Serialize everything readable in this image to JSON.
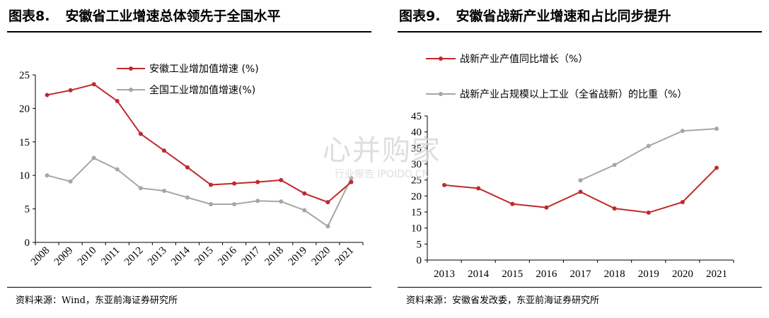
{
  "left": {
    "fig_num": "图表8.",
    "title": "安徽省工业增速总体领先于全国水平",
    "source": "资料来源：Wind，东亚前海证券研究所"
  },
  "right": {
    "fig_num": "图表9.",
    "title": "安徽省战新产业增速和占比同步提升",
    "source": "资料来源：安徽省发改委，东亚前海证券研究所"
  },
  "watermark": {
    "main": "心并购家",
    "sub": "行业报告 IPOIDO.CN"
  },
  "colors": {
    "red": "#c0282d",
    "gray": "#a6a6a6",
    "axis": "#000000"
  },
  "chart_data": [
    {
      "type": "line",
      "title": "",
      "categories": [
        "2008",
        "2009",
        "2010",
        "2011",
        "2012",
        "2013",
        "2014",
        "2015",
        "2016",
        "2017",
        "2018",
        "2019",
        "2020",
        "2021"
      ],
      "ylim": [
        0,
        25
      ],
      "yticks": [
        "0",
        "5",
        "10",
        "15",
        "20",
        "25"
      ],
      "grid": false,
      "legend_position": "top",
      "series": [
        {
          "name": "安徽工业增加值增速 (%)",
          "color": "#c0282d",
          "values": [
            22.0,
            22.7,
            23.6,
            21.1,
            16.2,
            13.7,
            11.2,
            8.6,
            8.8,
            9.0,
            9.3,
            7.3,
            6.0,
            9.0
          ]
        },
        {
          "name": "全国工业增加值增速(%)",
          "color": "#a6a6a6",
          "values": [
            10.0,
            9.1,
            12.6,
            10.9,
            8.1,
            7.7,
            6.7,
            5.7,
            5.7,
            6.2,
            6.1,
            4.8,
            2.4,
            9.6
          ]
        }
      ]
    },
    {
      "type": "line",
      "title": "",
      "categories": [
        "2013",
        "2014",
        "2015",
        "2016",
        "2017",
        "2018",
        "2019",
        "2020",
        "2021"
      ],
      "ylim": [
        0,
        45
      ],
      "yticks": [
        "0",
        "5",
        "10",
        "15",
        "20",
        "25",
        "30",
        "35",
        "40",
        "45"
      ],
      "grid": false,
      "legend_position": "top",
      "series": [
        {
          "name": "战新产业产值同比增长（%）",
          "color": "#c0282d",
          "values": [
            23.4,
            22.4,
            17.5,
            16.4,
            21.3,
            16.1,
            14.8,
            18.1,
            28.8
          ]
        },
        {
          "name": "战新产业占规模以上工业（全省战新）的比重（%）",
          "color": "#a6a6a6",
          "values": [
            null,
            null,
            null,
            null,
            24.9,
            29.7,
            35.6,
            40.3,
            41.0
          ]
        }
      ]
    }
  ]
}
